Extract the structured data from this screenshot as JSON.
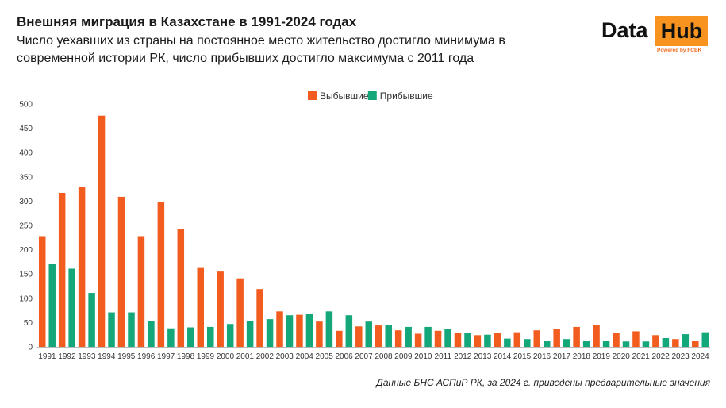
{
  "header": {
    "title": "Внешняя миграция в Казахстане в 1991-2024 годах",
    "subtitle": "Число уехавших из страны на постоянное место жительство достигло минимума в современной истории РК, число прибывших достигло максимума с 2011 года"
  },
  "logo": {
    "data": "Data",
    "hub": "Hub",
    "powered": "Powered by FCBK"
  },
  "source": "Данные БНС АСПиР РК, за 2024 г. приведены предварительные значения",
  "colors": {
    "departed": "#f25c1f",
    "arrived": "#13a77a"
  },
  "chart_data": {
    "type": "bar",
    "title": "",
    "xlabel": "",
    "ylabel": "",
    "ylim": [
      0,
      500
    ],
    "yticks": [
      0,
      50,
      100,
      150,
      200,
      250,
      300,
      350,
      400,
      450,
      500
    ],
    "grid": false,
    "legend_position": "top-center",
    "categories": [
      "1991",
      "1992",
      "1993",
      "1994",
      "1995",
      "1996",
      "1997",
      "1998",
      "1999",
      "2000",
      "2001",
      "2002",
      "2003",
      "2004",
      "2005",
      "2006",
      "2007",
      "2008",
      "2009",
      "2010",
      "2011",
      "2012",
      "2013",
      "2014",
      "2015",
      "2016",
      "2017",
      "2018",
      "2019",
      "2020",
      "2021",
      "2022",
      "2023",
      "2024"
    ],
    "series": [
      {
        "name": "Выбывшие",
        "values": [
          228,
          317,
          329,
          476,
          309,
          228,
          299,
          243,
          164,
          155,
          141,
          119,
          73,
          66,
          52,
          33,
          42,
          44,
          34,
          27,
          33,
          29,
          24,
          29,
          30,
          34,
          37,
          41,
          45,
          29,
          32,
          24,
          16,
          13
        ]
      },
      {
        "name": "Прибывшие",
        "values": [
          170,
          161,
          111,
          71,
          71,
          53,
          38,
          40,
          41,
          47,
          53,
          57,
          65,
          68,
          73,
          65,
          52,
          45,
          41,
          41,
          37,
          28,
          25,
          17,
          16,
          13,
          16,
          13,
          12,
          11,
          11,
          18,
          26,
          30
        ]
      }
    ]
  }
}
